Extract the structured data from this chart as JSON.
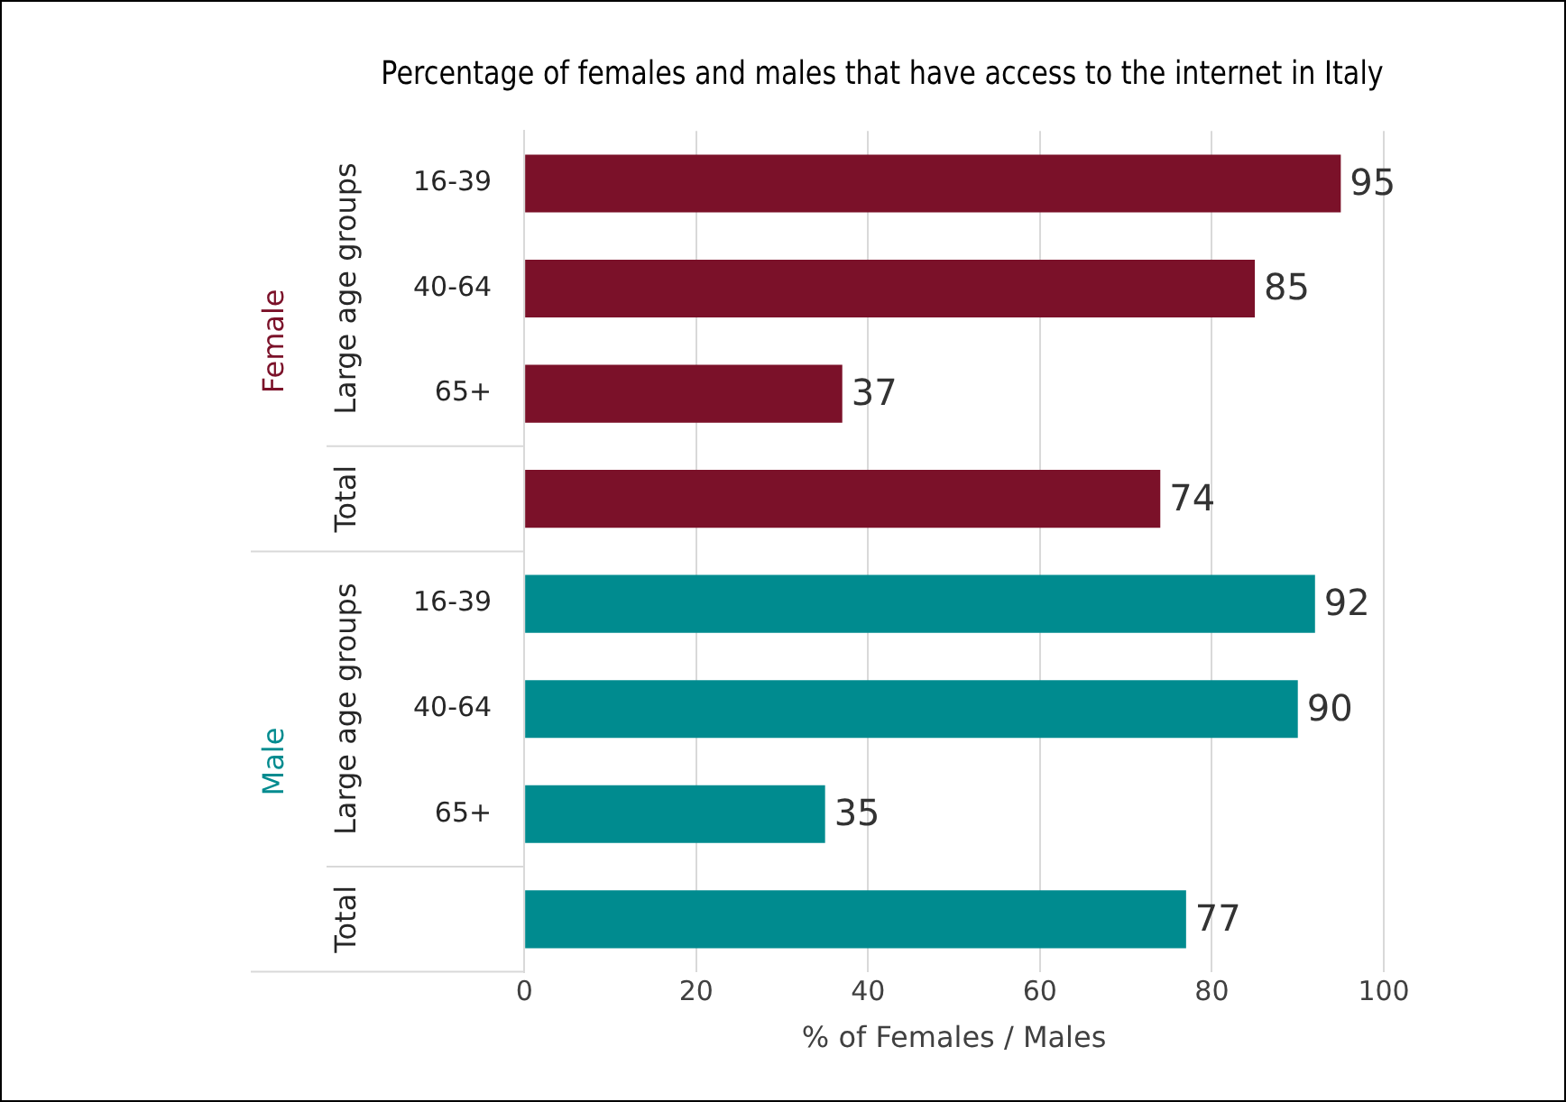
{
  "chart_data": {
    "type": "bar",
    "orientation": "horizontal",
    "title": "Percentage of females and males that have access to the internet in Italy",
    "xlabel": "% of Females / Males",
    "categories": [
      "16-39",
      "40-64",
      "65+",
      null,
      "16-39",
      "40-64",
      "65+",
      null
    ],
    "series": [
      {
        "name": "Female",
        "color": "#7b1129",
        "values": [
          95,
          85,
          37,
          74,
          null,
          null,
          null,
          null
        ]
      },
      {
        "name": "Male",
        "color": "#008b8f",
        "values": [
          null,
          null,
          null,
          null,
          92,
          90,
          35,
          77
        ]
      }
    ],
    "annotations": [
      "Large age groups",
      "Total"
    ],
    "xlim": [
      0,
      100
    ],
    "xticks": [
      0,
      20,
      40,
      60,
      80,
      100
    ],
    "grid": "x",
    "legend": false,
    "data_labels": true
  }
}
